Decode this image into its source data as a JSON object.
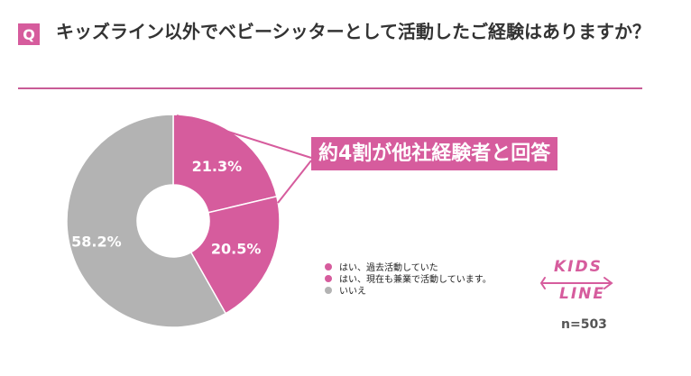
{
  "header": {
    "badge": "Q",
    "title": "キッズライン以外でベビーシッターとして活動したご経験はありますか？"
  },
  "callout": {
    "text": "約4割が他社経験者と回答"
  },
  "sample": {
    "label": "n=503"
  },
  "logo": {
    "line1": "KIDS",
    "line2": "LINE"
  },
  "colors": {
    "accent": "#d65c9d",
    "gray": "#b3b3b3"
  },
  "chart_data": {
    "type": "pie",
    "donut": true,
    "legend_position": "bottom-right",
    "categories": [
      "はい、過去活動していた",
      "はい、現在も兼業で活動しています。",
      "いいえ"
    ],
    "values": [
      21.3,
      20.5,
      58.2
    ],
    "labels": [
      "21.3%",
      "20.5%",
      "58.2%"
    ],
    "colors": [
      "#d65c9d",
      "#d65c9d",
      "#b3b3b3"
    ]
  }
}
